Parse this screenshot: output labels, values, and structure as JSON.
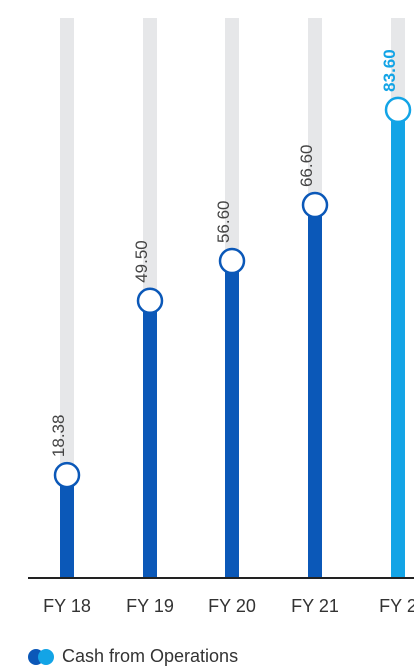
{
  "chart_data": {
    "type": "bar",
    "categories": [
      "FY 18",
      "FY 19",
      "FY 20",
      "FY 21",
      "FY 2"
    ],
    "series": [
      {
        "name": "Cash from Operations",
        "values": [
          18.38,
          49.5,
          56.6,
          66.6,
          83.6
        ],
        "value_labels": [
          "18.38",
          "49.50",
          "56.60",
          "66.60",
          "83.60"
        ]
      }
    ],
    "highlighted_index": 4,
    "ylim": [
      0,
      100
    ],
    "grid": false,
    "legend_position": "bottom-left"
  },
  "legend": {
    "label": "Cash from Operations"
  },
  "colors": {
    "bar": "#0b58b8",
    "highlight": "#13a4e6",
    "track": "#e6e7e9",
    "axis": "#222222"
  }
}
